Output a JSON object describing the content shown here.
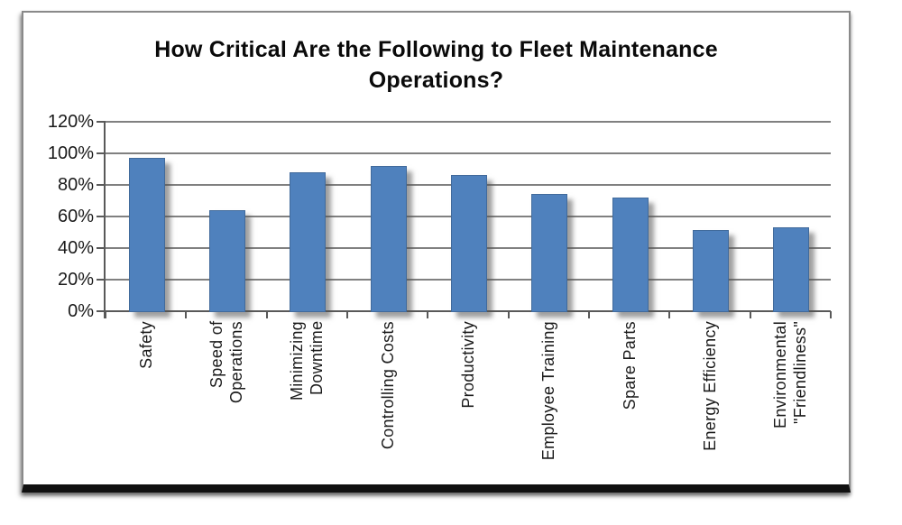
{
  "chart_data": {
    "type": "bar",
    "title": "How Critical Are the Following to Fleet Maintenance\nOperations?",
    "categories": [
      "Safety",
      "Speed of\nOperations",
      "Minimizing\nDowntime",
      "Controlling Costs",
      "Productivity",
      "Employee Training",
      "Spare Parts",
      "Energy Efficiency",
      "Environmental\n\"Friendliness\""
    ],
    "values": [
      97,
      64,
      88,
      92,
      86,
      74,
      72,
      51,
      53
    ],
    "unit": "%",
    "xlabel": "",
    "ylabel": "",
    "y_axis": {
      "min": 0,
      "max": 120,
      "step": 20,
      "tick_labels": [
        "0%",
        "20%",
        "40%",
        "60%",
        "80%",
        "100%",
        "120%"
      ]
    },
    "grid": true,
    "legend": false,
    "category_label_rotation": 90,
    "style": {
      "bar_color": "#4f81bd",
      "bar_border_color": "#416a9b",
      "bar_shadow_color": "rgba(80,80,80,0.55)",
      "grid_color": "#808080",
      "axis_color": "#595959",
      "title_color": "#0a0a0a",
      "label_color": "#1a1a1a",
      "frame_border_color": "#8a8a8a",
      "frame_bottom_color": "#101010",
      "background": "#ffffff"
    }
  }
}
